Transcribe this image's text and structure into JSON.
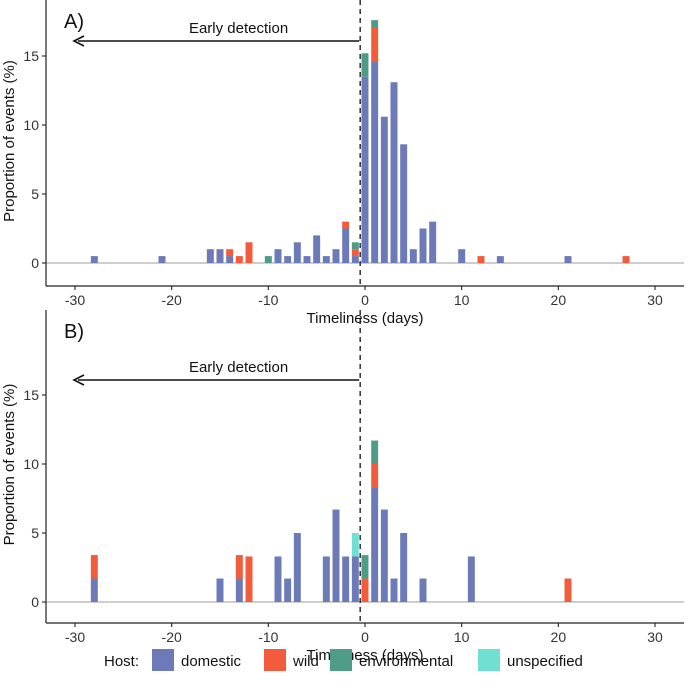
{
  "colors": {
    "domestic": "#6C7AB8",
    "wild": "#F25C3C",
    "environmental": "#4E9C87",
    "unspecified": "#6FE0D2",
    "baseline": "#bdbdbd",
    "axis": "#222222"
  },
  "legend": {
    "title": "Host:",
    "items": [
      {
        "key": "domestic",
        "label": "domestic"
      },
      {
        "key": "wild",
        "label": "wild"
      },
      {
        "key": "environmental",
        "label": "environmental"
      },
      {
        "key": "unspecified",
        "label": "unspecified"
      }
    ]
  },
  "chart_data": [
    {
      "type": "bar",
      "stacked": true,
      "panel_label": "A)",
      "annotation": "Early detection",
      "xlabel": "Timeliness (days)",
      "ylabel": "Proportion of events (%)",
      "xlim": [
        -33,
        33
      ],
      "ylim": [
        -0.6,
        18.5
      ],
      "xticks": [
        -30,
        -20,
        -10,
        0,
        10,
        20,
        30
      ],
      "yticks": [
        0,
        5,
        10,
        15
      ],
      "vline_x": -0.5,
      "bars": [
        {
          "x": -28,
          "domestic": 0.5
        },
        {
          "x": -21,
          "domestic": 0.5
        },
        {
          "x": -16,
          "domestic": 1.0
        },
        {
          "x": -15,
          "domestic": 1.0
        },
        {
          "x": -14,
          "domestic": 0.5,
          "wild": 0.5
        },
        {
          "x": -13,
          "wild": 0.5
        },
        {
          "x": -12,
          "wild": 1.5
        },
        {
          "x": -10,
          "environmental": 0.5
        },
        {
          "x": -9,
          "domestic": 1.0
        },
        {
          "x": -8,
          "domestic": 0.5
        },
        {
          "x": -7,
          "domestic": 1.5
        },
        {
          "x": -6,
          "domestic": 0.5
        },
        {
          "x": -5,
          "domestic": 2.0
        },
        {
          "x": -4,
          "domestic": 0.5
        },
        {
          "x": -3,
          "domestic": 1.0
        },
        {
          "x": -2,
          "domestic": 2.5,
          "wild": 0.5
        },
        {
          "x": -1,
          "domestic": 0.5,
          "wild": 0.5,
          "environmental": 0.5
        },
        {
          "x": 0,
          "domestic": 13.5,
          "environmental": 1.7
        },
        {
          "x": 1,
          "domestic": 14.6,
          "wild": 2.5,
          "environmental": 0.5
        },
        {
          "x": 2,
          "domestic": 10.6
        },
        {
          "x": 3,
          "domestic": 13.1
        },
        {
          "x": 4,
          "domestic": 8.6
        },
        {
          "x": 5,
          "domestic": 1.0
        },
        {
          "x": 6,
          "domestic": 2.5
        },
        {
          "x": 7,
          "domestic": 3.0
        },
        {
          "x": 10,
          "domestic": 1.0
        },
        {
          "x": 12,
          "wild": 0.5
        },
        {
          "x": 14,
          "domestic": 0.5
        },
        {
          "x": 21,
          "domestic": 0.5
        },
        {
          "x": 27,
          "wild": 0.5
        }
      ]
    },
    {
      "type": "bar",
      "stacked": true,
      "panel_label": "B)",
      "annotation": "Early detection",
      "xlabel": "Timeliness (days)",
      "ylabel": "Proportion of events (%)",
      "xlim": [
        -33,
        33
      ],
      "ylim": [
        -0.6,
        18.5
      ],
      "xticks": [
        -30,
        -20,
        -10,
        0,
        10,
        20,
        30
      ],
      "yticks": [
        0,
        5,
        10,
        15
      ],
      "vline_x": -0.5,
      "bars": [
        {
          "x": -28,
          "domestic": 1.7,
          "wild": 1.7
        },
        {
          "x": -15,
          "domestic": 1.7
        },
        {
          "x": -13,
          "domestic": 1.7,
          "wild": 1.7
        },
        {
          "x": -12,
          "wild": 3.3
        },
        {
          "x": -9,
          "domestic": 3.3
        },
        {
          "x": -8,
          "domestic": 1.7
        },
        {
          "x": -7,
          "domestic": 5.0
        },
        {
          "x": -4,
          "domestic": 3.3
        },
        {
          "x": -3,
          "domestic": 6.7
        },
        {
          "x": -2,
          "domestic": 3.3
        },
        {
          "x": -1,
          "domestic": 3.3,
          "unspecified": 1.7
        },
        {
          "x": 0,
          "wild": 1.7,
          "environmental": 1.7
        },
        {
          "x": 1,
          "domestic": 8.3,
          "wild": 1.7,
          "environmental": 1.7
        },
        {
          "x": 2,
          "domestic": 6.7
        },
        {
          "x": 3,
          "domestic": 1.7
        },
        {
          "x": 4,
          "domestic": 5.0
        },
        {
          "x": 6,
          "domestic": 1.7
        },
        {
          "x": 11,
          "domestic": 3.3
        },
        {
          "x": 21,
          "wild": 1.7
        }
      ]
    }
  ]
}
